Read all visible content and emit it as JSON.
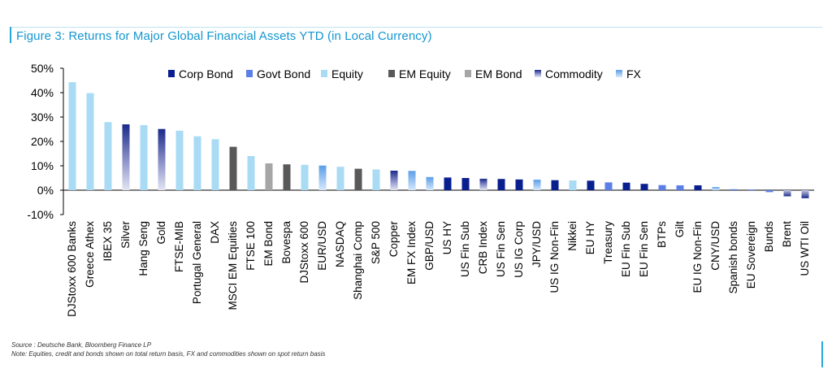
{
  "title": "Figure 3: Returns for Major Global Financial Assets YTD (in Local Currency)",
  "footnotes": {
    "source": "Source : Deutsche Bank, Bloomberg Finance LP",
    "note": "Note: Equities, credit and bonds shown on total return basis, FX and commodities shown on spot return basis"
  },
  "colors": {
    "Corp Bond": "#0a1f8f",
    "Govt Bond": "#5b7fe6",
    "Equity": "#a9dbf5",
    "EM Equity": "#595959",
    "EM Bond": "#a6a6a6",
    "Commodity": "#1a2a8a",
    "FX": "#7ab4ec"
  },
  "chart_data": {
    "type": "bar",
    "title": "Figure 3: Returns for Major Global Financial Assets YTD (in Local Currency)",
    "xlabel": "",
    "ylabel": "",
    "ylim": [
      -10,
      50
    ],
    "yticks": [
      "50%",
      "40%",
      "30%",
      "20%",
      "10%",
      "0%",
      "-10%"
    ],
    "ytick_values": [
      50,
      40,
      30,
      20,
      10,
      0,
      -10
    ],
    "grid": false,
    "legend_position": "top",
    "legend": [
      "Corp Bond",
      "Govt Bond",
      "Equity",
      "EM Equity",
      "EM Bond",
      "Commodity",
      "FX"
    ],
    "categories": [
      "DJStoxx 600 Banks",
      "Greece Athex",
      "IBEX 35",
      "Silver",
      "Hang Seng",
      "Gold",
      "FTSE-MIB",
      "Portugal General",
      "DAX",
      "MSCI EM Equities",
      "FTSE 100",
      "EM Bond",
      "Bovespa",
      "DJStoxx 600",
      "EUR/USD",
      "NASDAQ",
      "Shanghai Comp",
      "S&P 500",
      "Copper",
      "EM FX Index",
      "GBP/USD",
      "US HY",
      "US Fin Sub",
      "CRB Index",
      "US Fin Sen",
      "US IG Corp",
      "JPY/USD",
      "US IG Non-Fin",
      "Nikkei",
      "EU HY",
      "Treasury",
      "EU Fin Sub",
      "EU Fin Sen",
      "BTPs",
      "Gilt",
      "EU IG Non-Fin",
      "CNY/USD",
      "Spanish bonds",
      "EU Sovereign",
      "Bunds",
      "Brent",
      "US WTI Oil"
    ],
    "values": [
      44.3,
      39.8,
      27.9,
      27.0,
      26.7,
      25.1,
      24.4,
      22.1,
      20.9,
      17.8,
      14.0,
      11.0,
      10.6,
      10.4,
      10.1,
      9.6,
      8.8,
      8.5,
      8.0,
      7.9,
      5.4,
      5.2,
      5.0,
      4.7,
      4.6,
      4.4,
      4.3,
      4.1,
      4.0,
      3.9,
      3.2,
      3.1,
      2.6,
      2.1,
      2.0,
      2.0,
      1.3,
      0.4,
      0.3,
      -0.8,
      -2.5,
      -3.3
    ],
    "asset_class": [
      "Equity",
      "Equity",
      "Equity",
      "Commodity",
      "Equity",
      "Commodity",
      "Equity",
      "Equity",
      "Equity",
      "EM Equity",
      "Equity",
      "EM Bond",
      "EM Equity",
      "Equity",
      "FX",
      "Equity",
      "EM Equity",
      "Equity",
      "Commodity",
      "FX",
      "FX",
      "Corp Bond",
      "Corp Bond",
      "Commodity",
      "Corp Bond",
      "Corp Bond",
      "FX",
      "Corp Bond",
      "Equity",
      "Corp Bond",
      "Govt Bond",
      "Corp Bond",
      "Corp Bond",
      "Govt Bond",
      "Govt Bond",
      "Corp Bond",
      "FX",
      "Govt Bond",
      "Govt Bond",
      "Govt Bond",
      "Commodity",
      "Commodity"
    ]
  }
}
